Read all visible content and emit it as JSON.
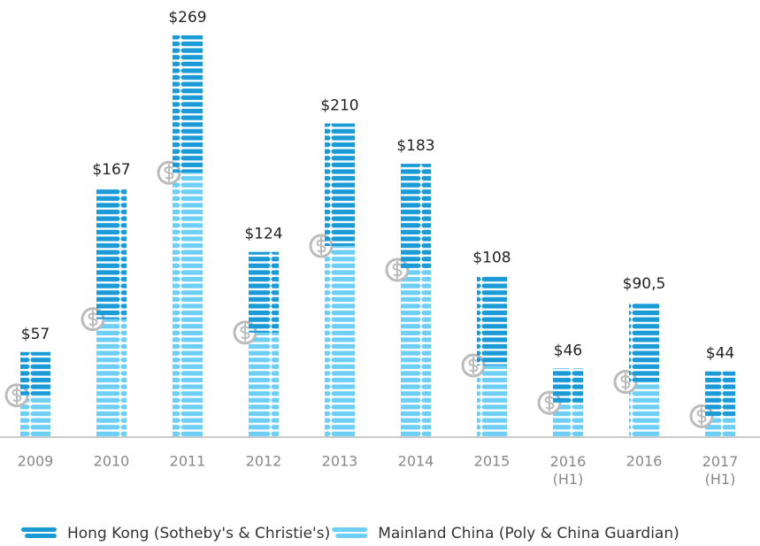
{
  "chart_data": {
    "type": "stacked_bar",
    "categories": [
      "2009",
      "2010",
      "2011",
      "2012",
      "2013",
      "2014",
      "2015",
      "2016\n(H1)",
      "2016",
      "2017\n(H1)"
    ],
    "series": [
      {
        "name": "Mainland China (Poly & China Guardian)",
        "color": "#6dcff6",
        "values": [
          28,
          79,
          177,
          70,
          128,
          112,
          48,
          23,
          37,
          14
        ]
      },
      {
        "name": "Hong Kong (Sotheby's & Christie's)",
        "color": "#1a9ad6",
        "values": [
          29,
          88,
          92,
          54,
          82,
          71,
          60,
          23,
          53.5,
          30
        ]
      }
    ],
    "totals": [
      57,
      167,
      269,
      124,
      210,
      183,
      108,
      46,
      90.5,
      44
    ],
    "total_labels": [
      "$57",
      "$167",
      "$269",
      "$124",
      "$210",
      "$183",
      "$108",
      "$46",
      "$90,5",
      "$44"
    ],
    "legend_order": [
      1,
      0
    ]
  }
}
